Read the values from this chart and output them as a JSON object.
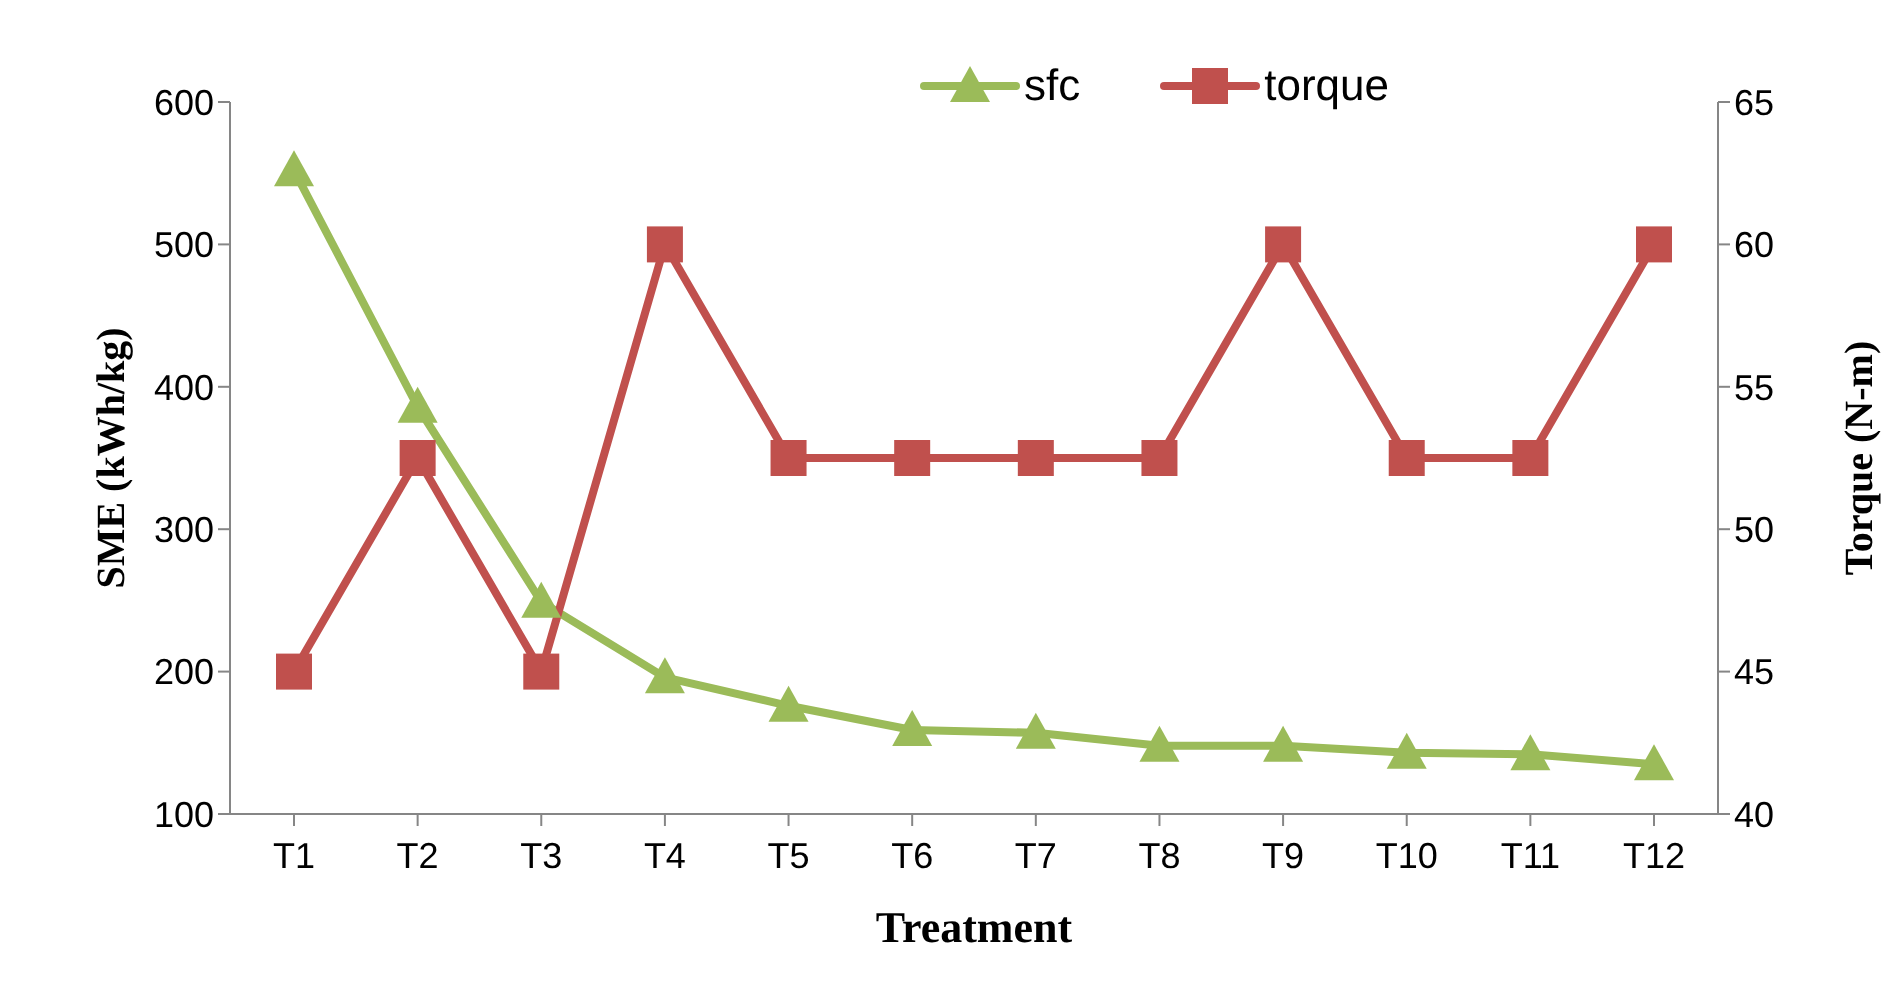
{
  "chart_data": {
    "type": "line",
    "xlabel": "Treatment",
    "ylabel": "SME (kWh/kg)",
    "y2label": "Torque (N-m)",
    "categories": [
      "T1",
      "T2",
      "T3",
      "T4",
      "T5",
      "T6",
      "T7",
      "T8",
      "T9",
      "T10",
      "T11",
      "T12"
    ],
    "series": [
      {
        "name": "sfc",
        "color": "#9bbb59",
        "marker": "triangle",
        "values": [
          552,
          386,
          249,
          196,
          176,
          159,
          157,
          148,
          148,
          143,
          142,
          135
        ]
      },
      {
        "name": "torque",
        "color": "#c0504d",
        "marker": "square",
        "axis": "y2",
        "values": [
          45,
          52.5,
          45,
          60,
          52.5,
          52.5,
          52.5,
          52.5,
          60,
          52.5,
          52.5,
          60
        ]
      }
    ],
    "ylim": [
      100,
      600
    ],
    "yticks": [
      100,
      200,
      300,
      400,
      500,
      600
    ],
    "y2lim": [
      40,
      65
    ],
    "y2ticks": [
      40,
      45,
      50,
      55,
      60,
      65
    ],
    "grid": false,
    "legend": "top",
    "line_style": "solid"
  }
}
